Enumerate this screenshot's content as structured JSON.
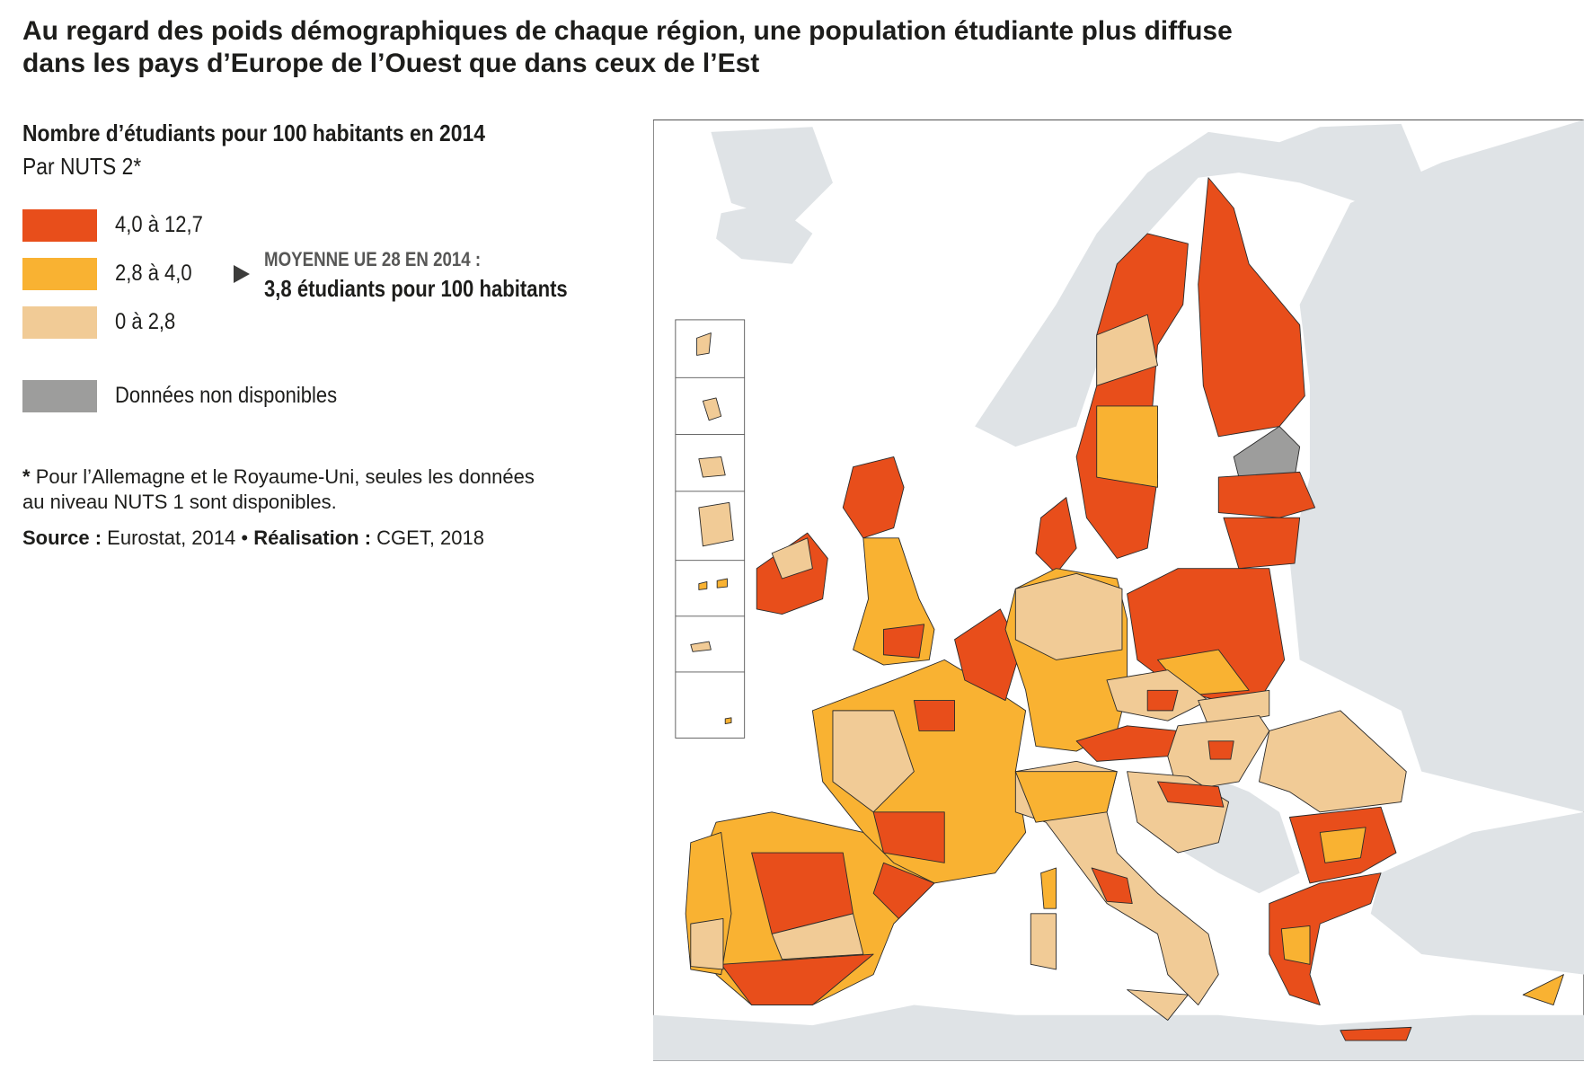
{
  "title": {
    "line1": "Au regard des poids démographiques de chaque région, une population étudiante plus diffuse",
    "line2": "dans les pays d’Europe de l’Ouest que dans ceux de l’Est"
  },
  "legend": {
    "title": "Nombre d’étudiants pour 100 habitants en 2014",
    "subtitle": "Par NUTS 2*",
    "items": [
      {
        "label": "4,0 à 12,7",
        "color": "#e84e1b"
      },
      {
        "label": "2,8 à 4,0",
        "color": "#f9b232"
      },
      {
        "label": "0 à  2,8",
        "color": "#f1cb96"
      },
      {
        "label": "Données non disponibles",
        "color": "#9d9d9c"
      }
    ]
  },
  "callout": {
    "heading": "MOYENNE UE 28 EN 2014 :",
    "text": "3,8 étudiants pour 100 habitants"
  },
  "note": {
    "marker": "*",
    "line1": "Pour l’Allemagne et le Royaume-Uni, seules les données",
    "line2": "au niveau NUTS 1 sont disponibles."
  },
  "source": {
    "source_label": "Source :",
    "source_text": "Eurostat, 2014",
    "separator": "•",
    "credit_label": "Réalisation :",
    "credit_text": "CGET, 2018"
  }
}
